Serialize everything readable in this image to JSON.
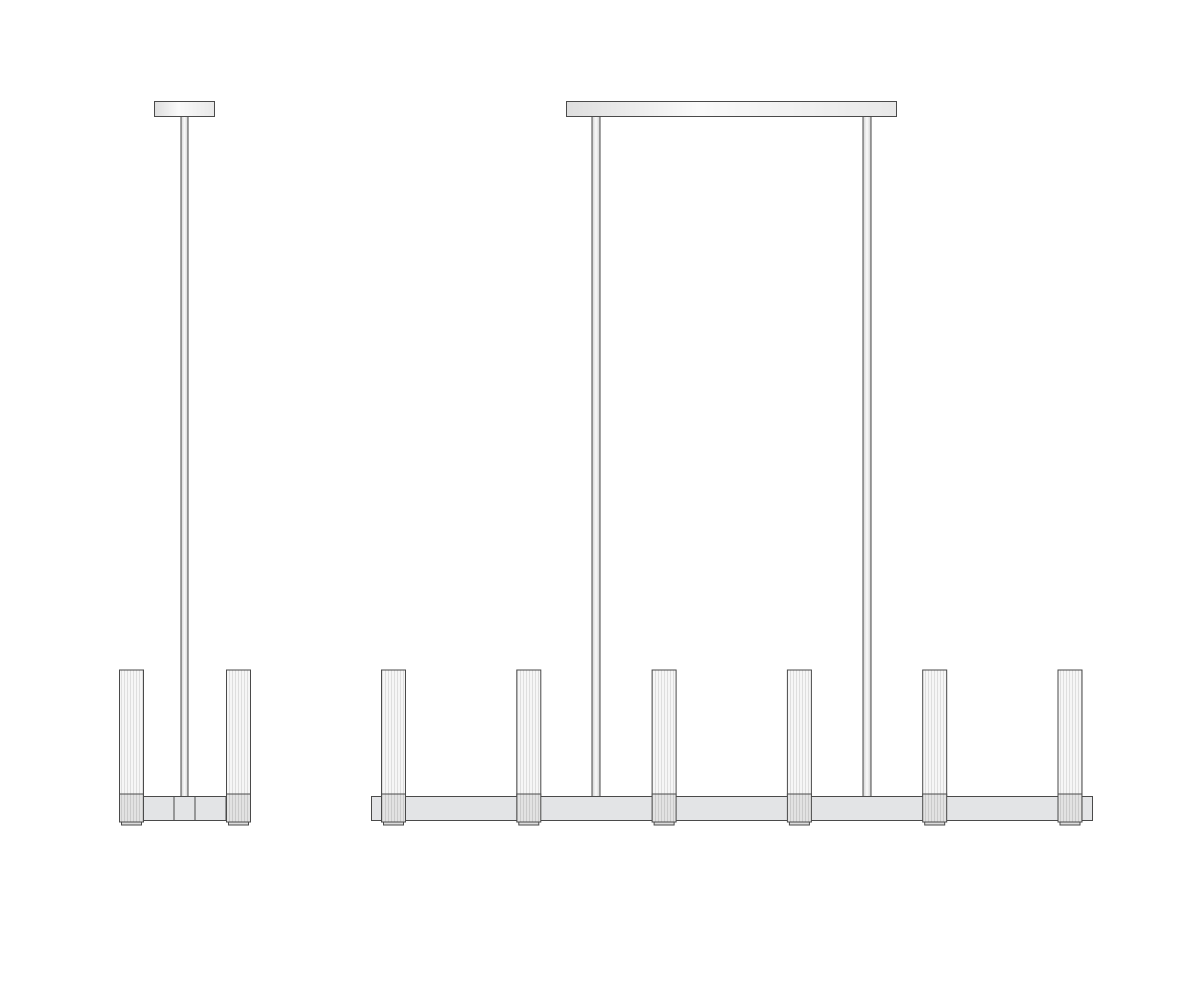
{
  "drawing": {
    "views": [
      "side",
      "front"
    ],
    "side_view": {
      "light_count": 2,
      "rod_count": 1
    },
    "front_view": {
      "light_count": 6,
      "rod_count": 2
    }
  },
  "colors": {
    "stroke": "#4a4a4a",
    "fill_bar": "#e3e4e6",
    "fill_tube": "#f4f4f4",
    "fill_collar": "#dcdcdc",
    "background": "#ffffff"
  }
}
